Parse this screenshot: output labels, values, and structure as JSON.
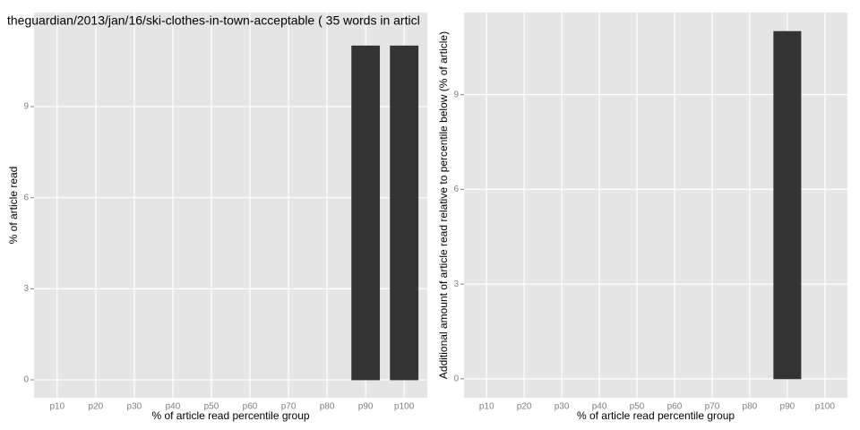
{
  "chart_data": [
    {
      "type": "bar",
      "title": "theguardian/2013/jan/16/ski-clothes-in-town-acceptable ( 35 words in articl",
      "x_label": "% of article read percentile group",
      "y_label": "% of article read",
      "categories": [
        "p10",
        "p20",
        "p30",
        "p40",
        "p50",
        "p60",
        "p70",
        "p80",
        "p90",
        "p100"
      ],
      "values": [
        0,
        0,
        0,
        0,
        0,
        0,
        0,
        0,
        11,
        11
      ],
      "color": "#333333",
      "ylim": [
        -0.59,
        12.1
      ],
      "yticks": [
        0,
        3,
        6,
        9
      ],
      "grid": true
    },
    {
      "type": "bar",
      "x_label": "% of article read percentile group",
      "y_label": "Additional amount of article read relative to percentile below (% of article)",
      "categories": [
        "p10",
        "p20",
        "p30",
        "p40",
        "p50",
        "p60",
        "p70",
        "p80",
        "p90",
        "p100"
      ],
      "values": [
        0,
        0,
        0,
        0,
        0,
        0,
        0,
        0,
        11,
        0
      ],
      "color": "#333333",
      "ylim": [
        -0.6,
        11.6
      ],
      "yticks": [
        0,
        3,
        6,
        9
      ],
      "grid": true
    }
  ]
}
